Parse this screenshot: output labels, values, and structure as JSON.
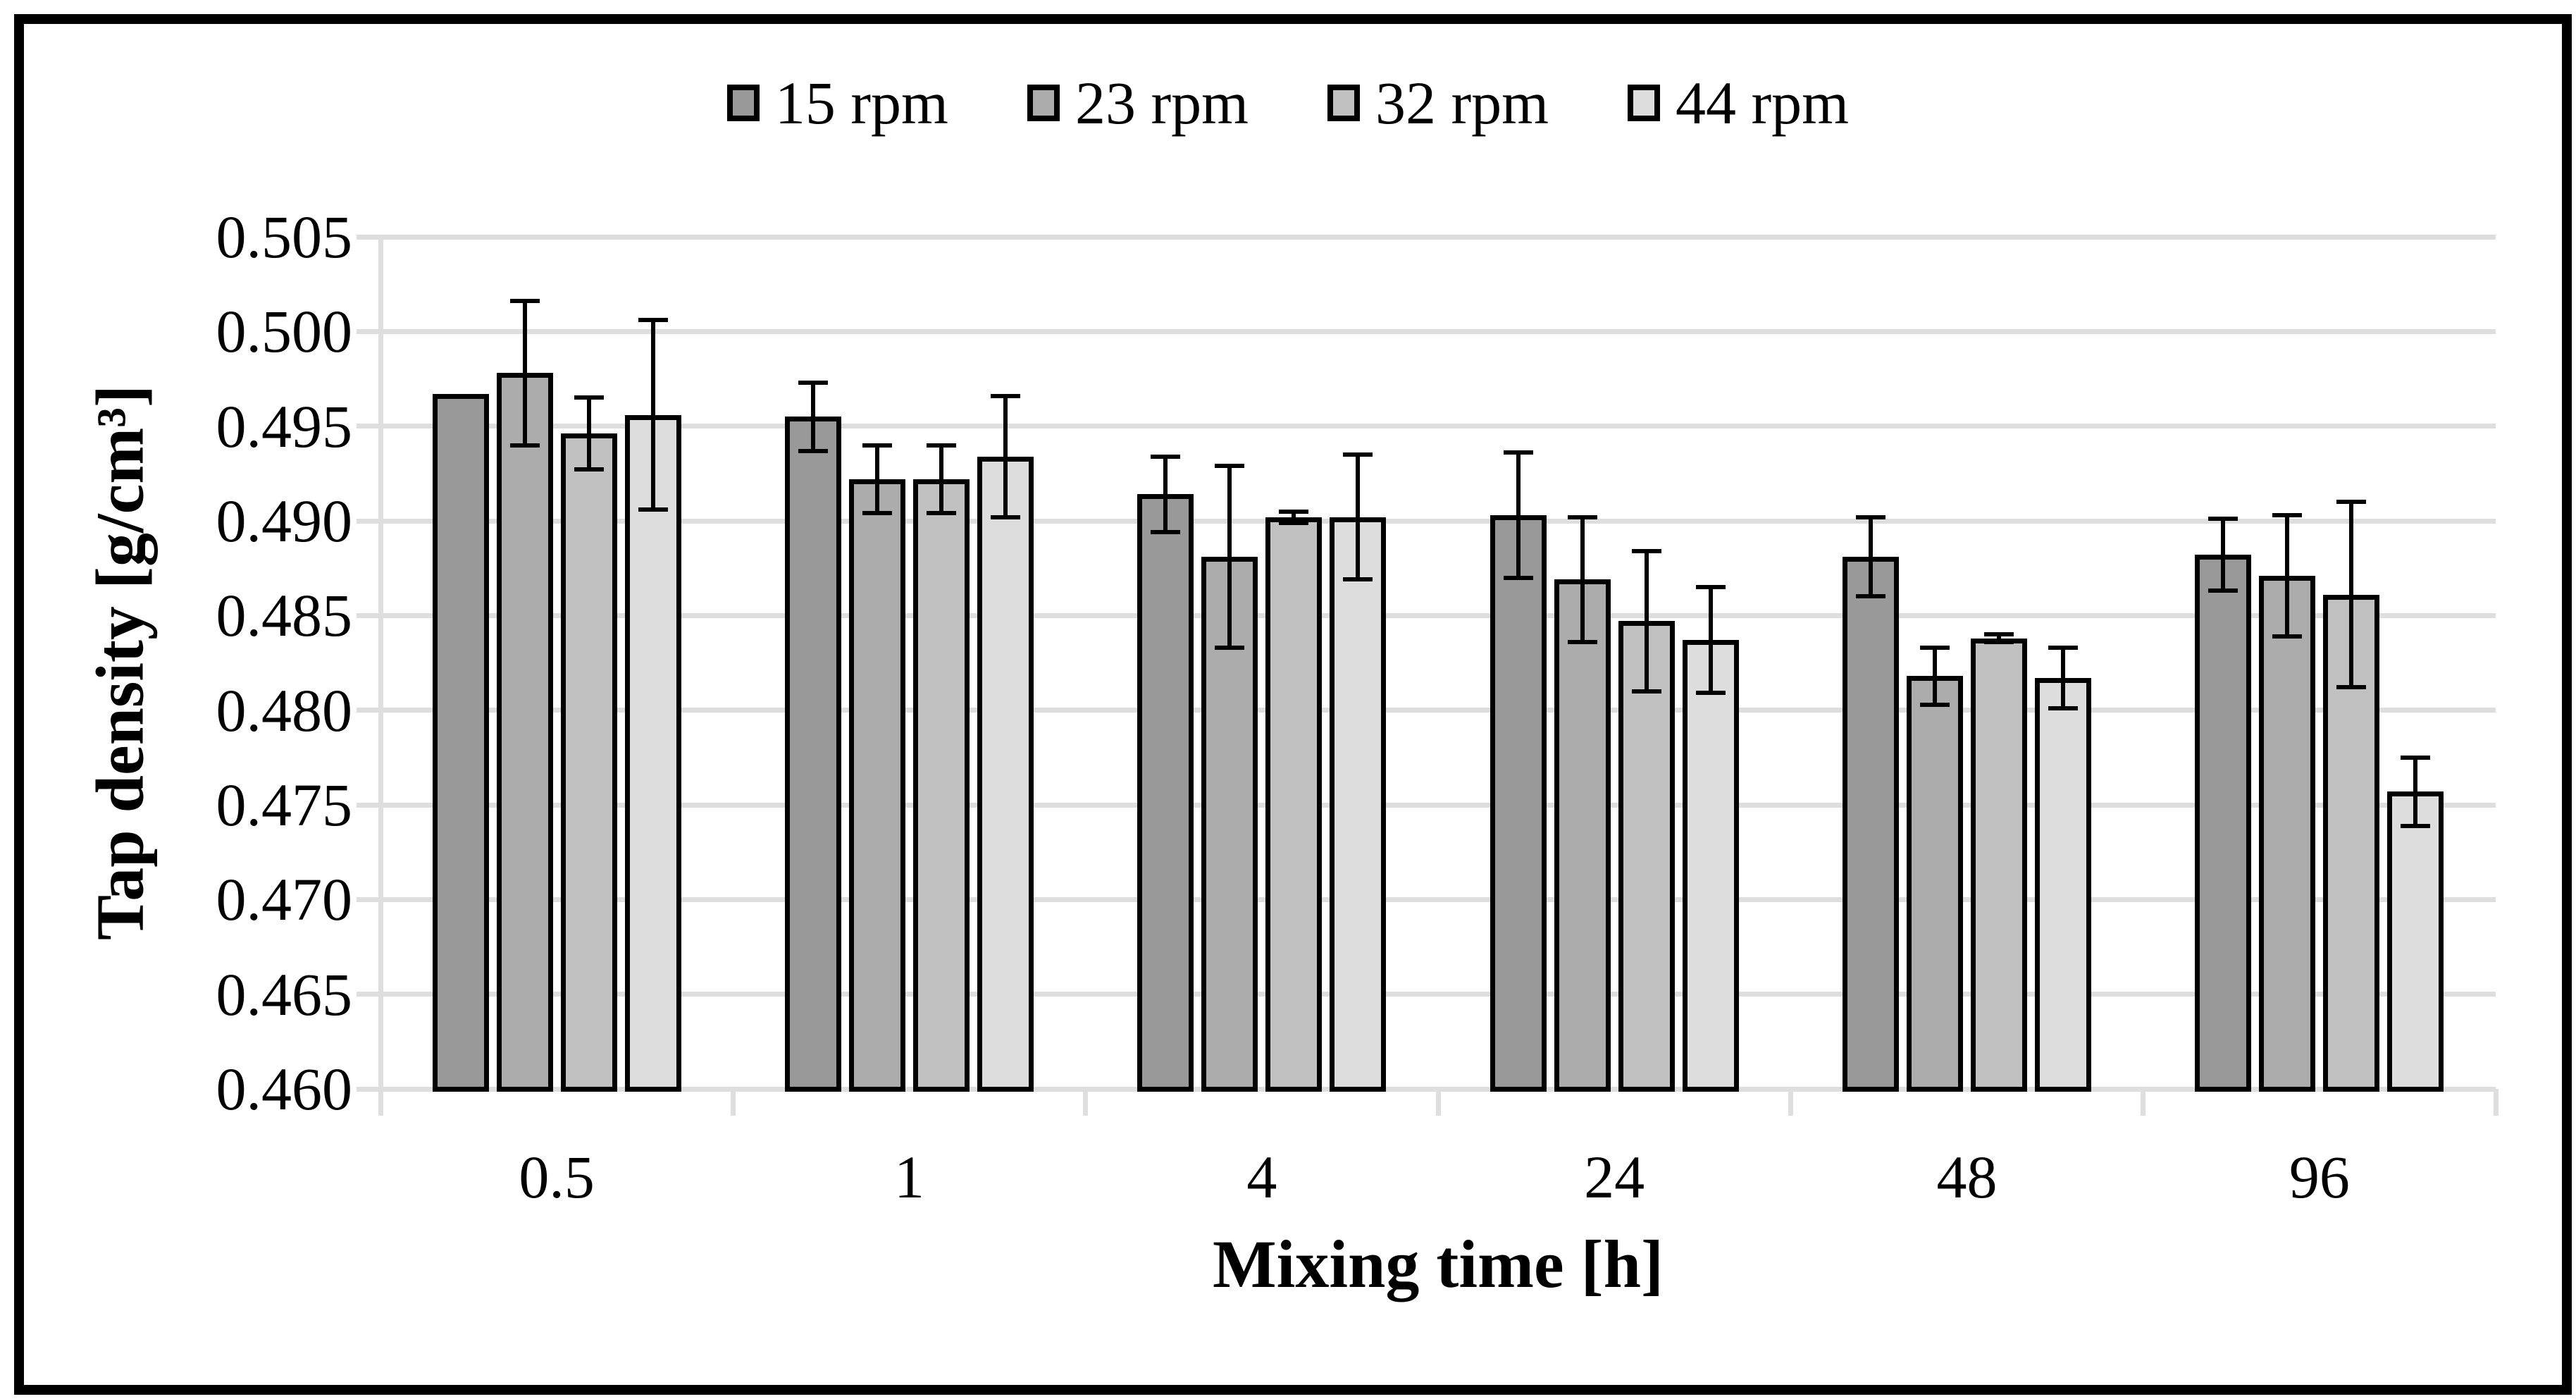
{
  "figure": {
    "background": "#ffffff",
    "border_color": "#000000",
    "gridline_color": "#dedede"
  },
  "chart_data": {
    "type": "bar",
    "title": "",
    "xlabel": "Mixing time [h]",
    "ylabel": "Tap density [g/cm³]",
    "categories": [
      "0.5",
      "1",
      "4",
      "24",
      "48",
      "96"
    ],
    "y_ticks": [
      "0.505",
      "0.500",
      "0.495",
      "0.490",
      "0.485",
      "0.480",
      "0.475",
      "0.470",
      "0.465",
      "0.460"
    ],
    "ylim": [
      0.46,
      0.505
    ],
    "grid": true,
    "legend_position": "top-center",
    "error_bars": true,
    "series": [
      {
        "name": "15 rpm",
        "color": "#999999",
        "values": [
          0.4967,
          0.4955,
          0.4914,
          0.4903,
          0.4881,
          0.4882
        ],
        "errors": [
          0.0,
          0.0018,
          0.002,
          0.0033,
          0.0021,
          0.0019
        ]
      },
      {
        "name": "23 rpm",
        "color": "#acacac",
        "values": [
          0.4978,
          0.4922,
          0.4881,
          0.4869,
          0.4818,
          0.4871
        ],
        "errors": [
          0.0038,
          0.0018,
          0.0048,
          0.0033,
          0.0015,
          0.0032
        ]
      },
      {
        "name": "32 rpm",
        "color": "#c1c1c1",
        "values": [
          0.4946,
          0.4922,
          0.4902,
          0.4847,
          0.4838,
          0.4861
        ],
        "errors": [
          0.0019,
          0.0018,
          0.0003,
          0.0037,
          0.0002,
          0.0049
        ]
      },
      {
        "name": "44 rpm",
        "color": "#dddddd",
        "values": [
          0.4956,
          0.4934,
          0.4902,
          0.4837,
          0.4817,
          0.4757
        ],
        "errors": [
          0.005,
          0.0032,
          0.0033,
          0.0028,
          0.0016,
          0.0018
        ]
      }
    ]
  }
}
